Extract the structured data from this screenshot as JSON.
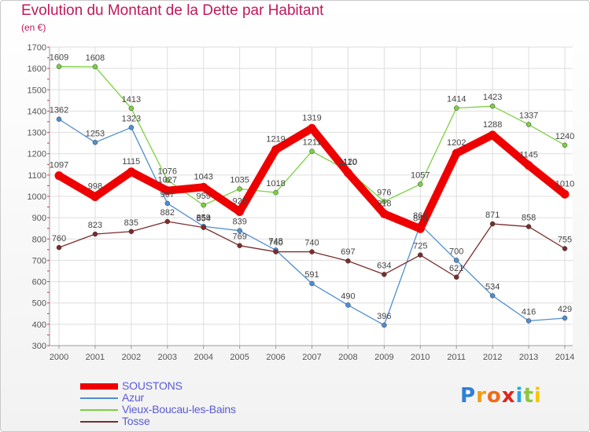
{
  "chart_data": {
    "type": "line",
    "title": "Evolution du Montant de la Dette par Habitant",
    "subtitle": "(en €)",
    "x": [
      "2000",
      "2001",
      "2002",
      "2003",
      "2004",
      "2005",
      "2006",
      "2007",
      "2008",
      "2009",
      "2010",
      "2011",
      "2012",
      "2013",
      "2014"
    ],
    "ylim": [
      300,
      1700
    ],
    "yticks": [
      300,
      400,
      500,
      600,
      700,
      800,
      900,
      1000,
      1100,
      1200,
      1300,
      1400,
      1500,
      1600,
      1700
    ],
    "grid": true,
    "legend_position": "bottom-left",
    "series": [
      {
        "name": "SOUSTONS",
        "color": "#ee0000",
        "emphasis": true,
        "values": [
          1097,
          998,
          1115,
          1027,
          1043,
          928,
          1219,
          1319,
          1110,
          918,
          848,
          1202,
          1288,
          1145,
          1010
        ]
      },
      {
        "name": "Azur",
        "color": "#4f8fd0",
        "values": [
          1362,
          1253,
          1323,
          967,
          859,
          839,
          748,
          591,
          490,
          396,
          868,
          700,
          534,
          416,
          429
        ]
      },
      {
        "name": "Vieux-Boucau-les-Bains",
        "color": "#7bd13f",
        "values": [
          1609,
          1608,
          1413,
          1076,
          959,
          1035,
          1018,
          1211,
          1120,
          976,
          1057,
          1414,
          1423,
          1337,
          1240
        ]
      },
      {
        "name": "Tosse",
        "color": "#7b2c2c",
        "values": [
          760,
          823,
          835,
          882,
          854,
          769,
          740,
          740,
          697,
          634,
          725,
          621,
          871,
          858,
          755
        ]
      }
    ]
  },
  "logo": {
    "letters": [
      {
        "ch": "P",
        "color": "#2f7fd6"
      },
      {
        "ch": "r",
        "color": "#f39b12"
      },
      {
        "ch": "o",
        "color": "#ef6a1a"
      },
      {
        "ch": "x",
        "color": "#e2231a"
      },
      {
        "ch": "i",
        "color": "#25a6e0"
      },
      {
        "ch": "t",
        "color": "#8dc63f"
      },
      {
        "ch": "i",
        "color": "#f7c600"
      }
    ]
  }
}
